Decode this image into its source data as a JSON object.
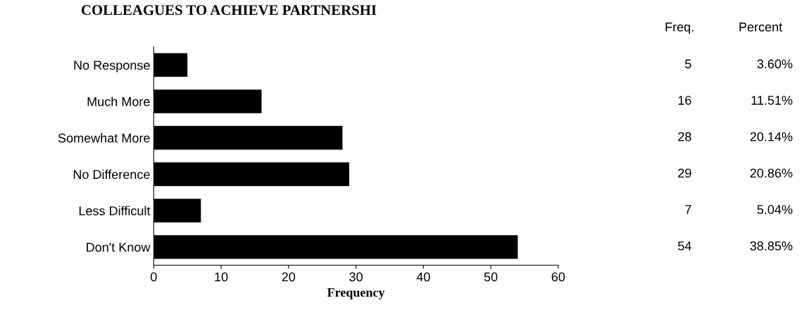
{
  "chart_data": {
    "type": "bar",
    "orientation": "horizontal",
    "title": "COLLEAGUES TO ACHIEVE PARTNERSHI",
    "xlabel": "Frequency",
    "categories": [
      "No Response",
      "Much More",
      "Somewhat More",
      "No Difference",
      "Less Difficult",
      "Don't Know"
    ],
    "values": [
      5,
      16,
      28,
      29,
      7,
      54
    ],
    "color": "#000000",
    "data_labels": true,
    "xlim": [
      0,
      60
    ],
    "xticks": [
      0,
      10,
      20,
      30,
      40,
      50,
      60
    ],
    "grid": false,
    "annotations": [
      "Freq.",
      "Percent",
      "3.60%",
      "11.51%",
      "20.14%",
      "20.86%",
      "5.04%",
      "38.85%"
    ]
  }
}
